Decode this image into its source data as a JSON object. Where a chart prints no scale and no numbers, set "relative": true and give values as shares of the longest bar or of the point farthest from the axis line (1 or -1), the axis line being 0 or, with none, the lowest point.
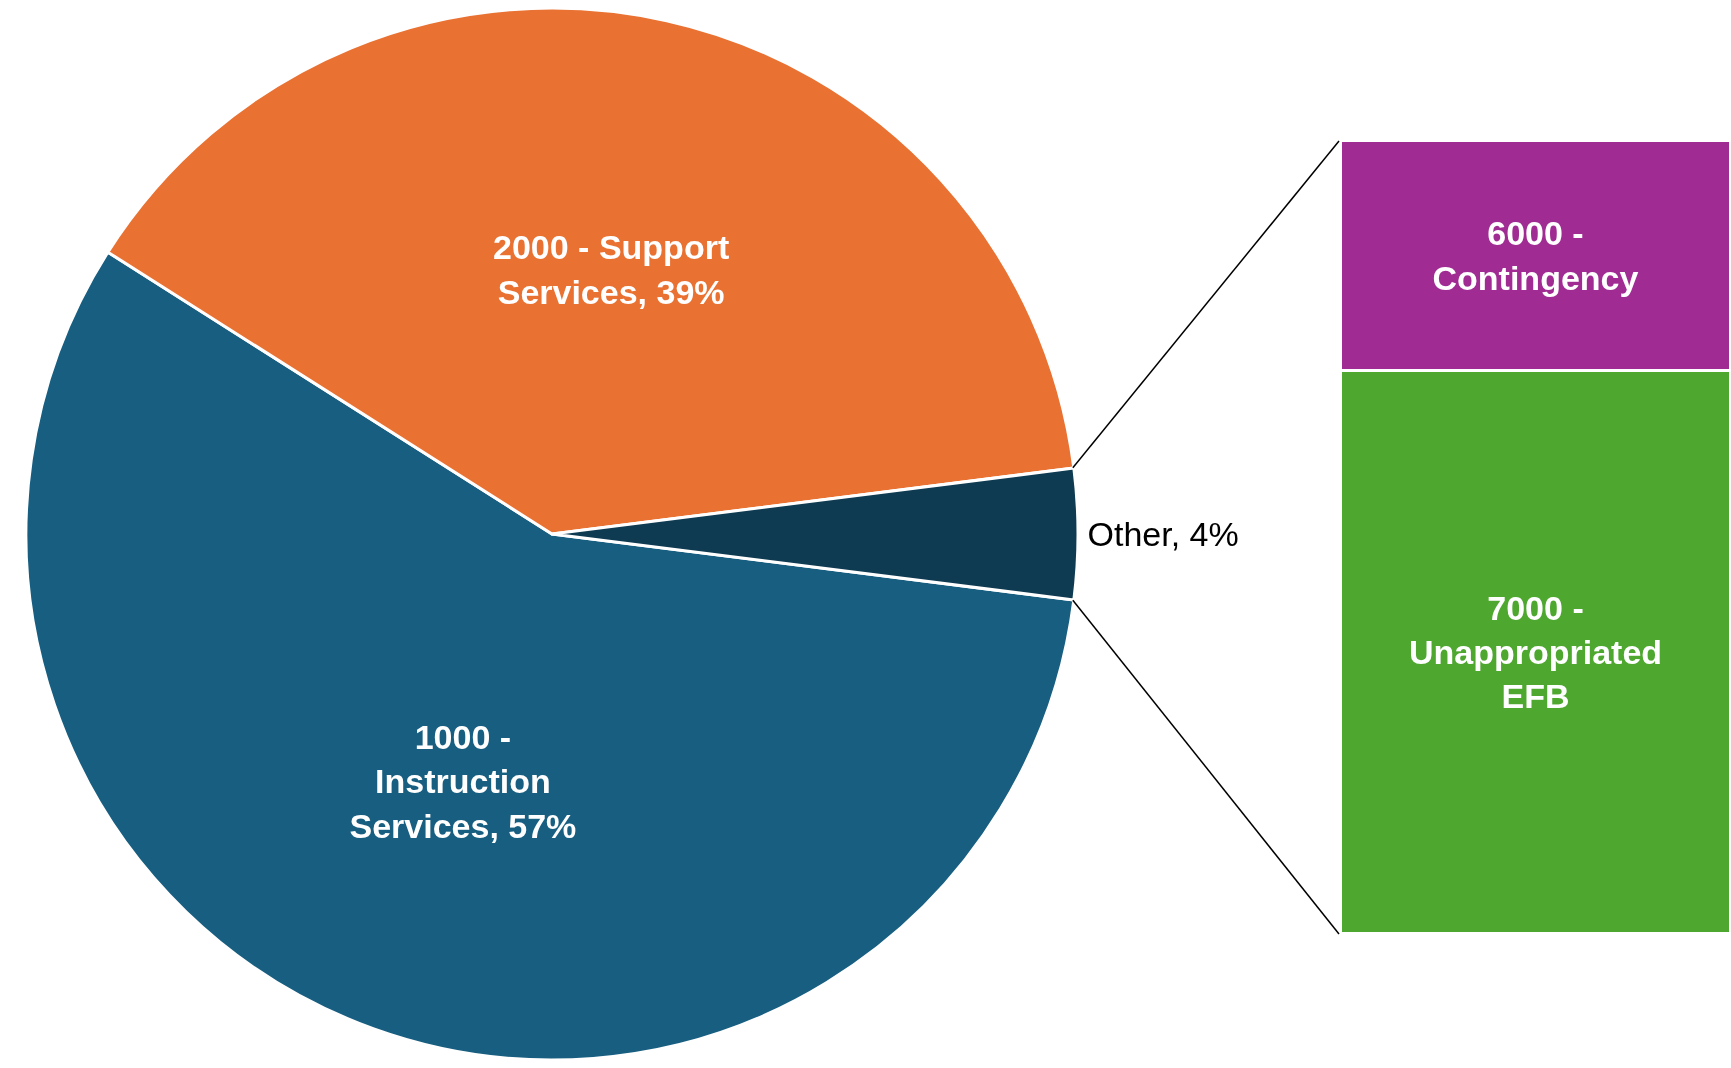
{
  "chart_data": [
    {
      "type": "pie",
      "categories": [
        "1000 - Instruction Services",
        "2000 - Support Services",
        "Other"
      ],
      "values": [
        57,
        39,
        4
      ],
      "value_labels": [
        "57%",
        "39%",
        "4%"
      ],
      "colors": [
        "#175e80",
        "#e97132",
        "#0e3a52"
      ]
    },
    {
      "type": "bar",
      "stacked": true,
      "relative": true,
      "categories": [
        null
      ],
      "series": [
        {
          "name": "7000 - Unappropriated EFB",
          "color": "#4ea72e",
          "values": [
            0.71
          ]
        },
        {
          "name": "6000 - Contingency",
          "color": "#a02b93",
          "values": [
            0.29
          ]
        }
      ]
    }
  ]
}
